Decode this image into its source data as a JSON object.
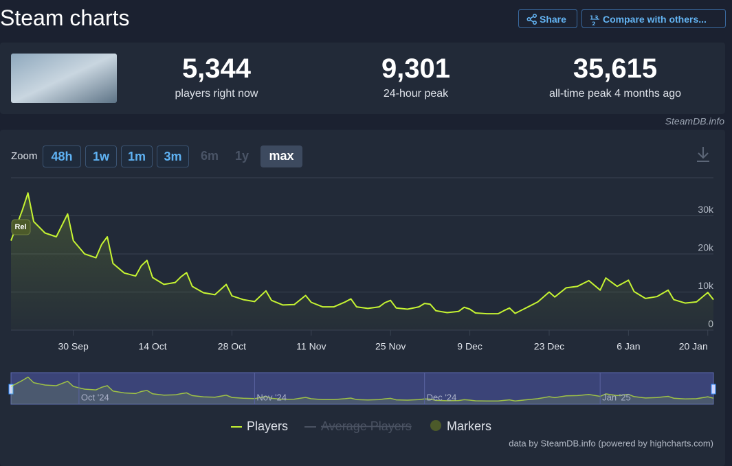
{
  "header": {
    "title": "Steam charts",
    "share": "Share",
    "compare": "Compare with others..."
  },
  "stats": [
    {
      "value": "5,344",
      "label": "players right now"
    },
    {
      "value": "9,301",
      "label": "24-hour peak"
    },
    {
      "value": "35,615",
      "label": "all-time peak 4 months ago"
    }
  ],
  "source": "SteamDB.info",
  "zoom": {
    "label": "Zoom",
    "buttons": [
      "48h",
      "1w",
      "1m",
      "3m",
      "6m",
      "1y",
      "max"
    ],
    "active": 6,
    "disabled": [
      4,
      5
    ]
  },
  "chart_data": {
    "type": "line",
    "x": [
      "19 Sep",
      "21 Sep",
      "22 Sep",
      "23 Sep",
      "25 Sep",
      "27 Sep",
      "29 Sep",
      "30 Sep",
      "2 Oct",
      "4 Oct",
      "5 Oct",
      "6 Oct",
      "7 Oct",
      "9 Oct",
      "11 Oct",
      "12 Oct",
      "13 Oct",
      "14 Oct",
      "16 Oct",
      "18 Oct",
      "19 Oct",
      "20 Oct",
      "21 Oct",
      "23 Oct",
      "25 Oct",
      "27 Oct",
      "28 Oct",
      "30 Oct",
      "1 Nov",
      "3 Nov",
      "4 Nov",
      "6 Nov",
      "8 Nov",
      "10 Nov",
      "11 Nov",
      "13 Nov",
      "15 Nov",
      "17 Nov",
      "18 Nov",
      "19 Nov",
      "21 Nov",
      "23 Nov",
      "24 Nov",
      "25 Nov",
      "26 Nov",
      "28 Nov",
      "30 Nov",
      "1 Dec",
      "2 Dec",
      "3 Dec",
      "5 Dec",
      "7 Dec",
      "8 Dec",
      "9 Dec",
      "10 Dec",
      "12 Dec",
      "14 Dec",
      "15 Dec",
      "16 Dec",
      "17 Dec",
      "19 Dec",
      "21 Dec",
      "23 Dec",
      "24 Dec",
      "26 Dec",
      "28 Dec",
      "30 Dec",
      "1 Jan",
      "2 Jan",
      "4 Jan",
      "6 Jan",
      "7 Jan",
      "9 Jan",
      "11 Jan",
      "13 Jan",
      "14 Jan",
      "16 Jan",
      "18 Jan",
      "20 Jan",
      "21 Jan"
    ],
    "series": [
      {
        "name": "Players",
        "color": "#c6f432",
        "values": [
          23500,
          31500,
          36000,
          28500,
          25500,
          24500,
          30500,
          23500,
          20000,
          19000,
          22500,
          24500,
          17500,
          15000,
          14200,
          16900,
          18300,
          13800,
          12000,
          12500,
          14000,
          15100,
          11500,
          9800,
          9300,
          12000,
          9000,
          8000,
          7500,
          10300,
          7800,
          6600,
          6700,
          9100,
          7300,
          6100,
          6100,
          7400,
          8200,
          6100,
          5700,
          6100,
          7200,
          7800,
          5800,
          5500,
          6100,
          7000,
          6800,
          5100,
          4600,
          4900,
          6000,
          5500,
          4500,
          4300,
          4300,
          5100,
          5800,
          4400,
          5900,
          7400,
          10000,
          8700,
          11100,
          11500,
          13000,
          10500,
          13700,
          11500,
          13100,
          10100,
          8300,
          8800,
          10500,
          8000,
          7100,
          7400,
          9900,
          8000
        ]
      }
    ],
    "xlim": [
      "19 Sep",
      "21 Jan"
    ],
    "ylim": [
      0,
      40000
    ],
    "xticks": [
      "30 Sep",
      "14 Oct",
      "28 Oct",
      "11 Nov",
      "25 Nov",
      "9 Dec",
      "23 Dec",
      "6 Jan",
      "20 Jan"
    ],
    "yticks": [
      0,
      {
        "value": 10000,
        "label": "10k"
      },
      {
        "value": 20000,
        "label": "20k"
      },
      {
        "value": 30000,
        "label": "30k"
      }
    ],
    "grid": true,
    "annotation": "Rel",
    "navigator_labels": [
      {
        "x": "1 Oct",
        "label": "Oct '24"
      },
      {
        "x": "1 Nov",
        "label": "Nov '24"
      },
      {
        "x": "1 Dec",
        "label": "Dec '24"
      },
      {
        "x": "1 Jan",
        "label": "Jan '25"
      }
    ],
    "legend_hidden": "Average Players",
    "legend_markers": "Markers",
    "credits": "data by SteamDB.info (powered by highcharts.com)"
  }
}
